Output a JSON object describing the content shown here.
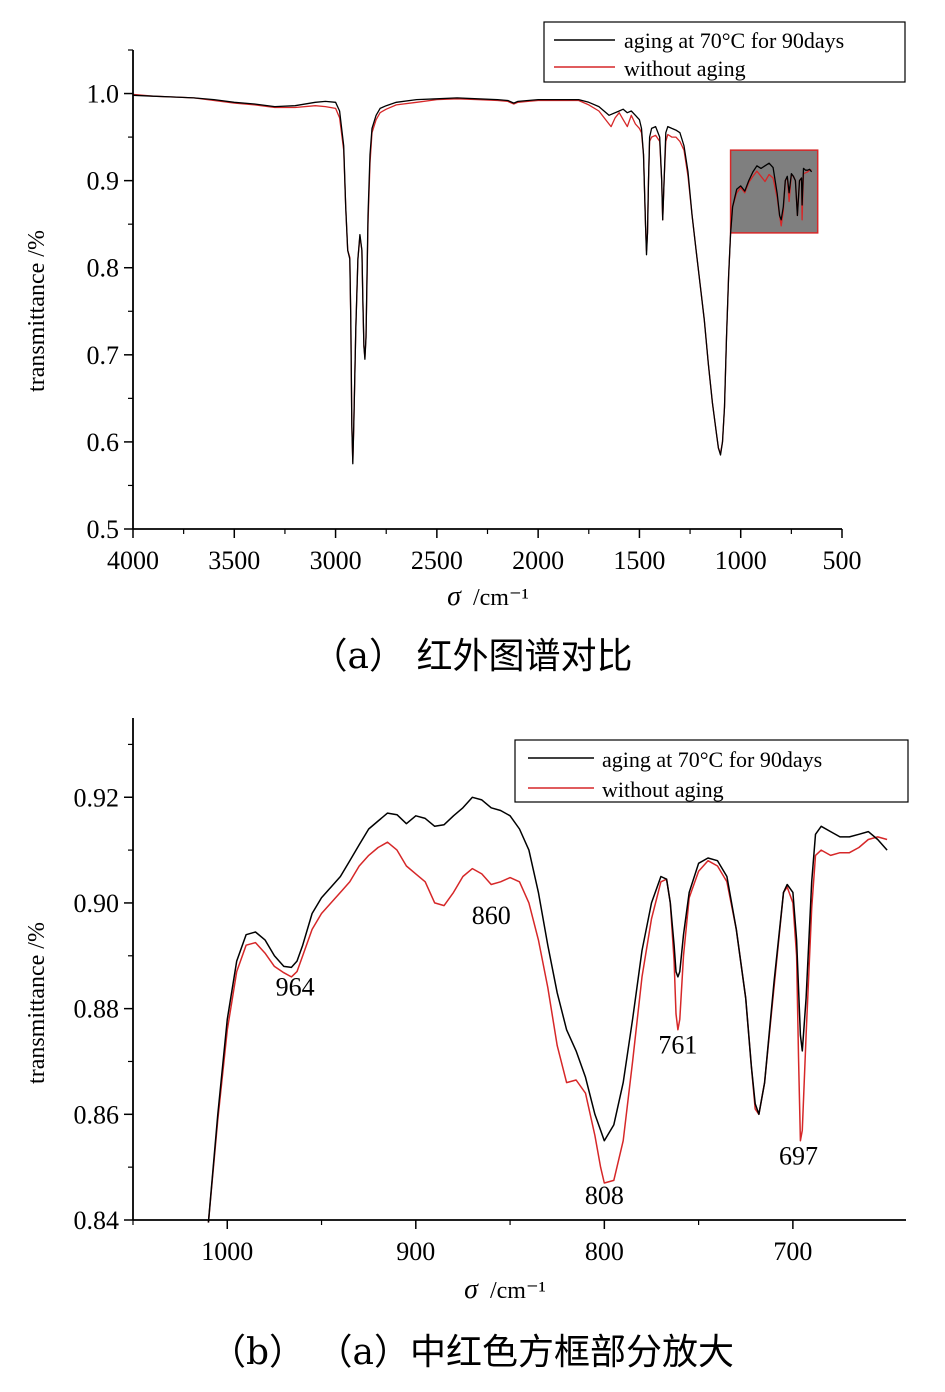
{
  "chart_data": [
    {
      "type": "line",
      "caption": "（a） 红外图谱对比",
      "xlabel_symbol": "σ",
      "xlabel_unit": "/cm⁻¹",
      "ylabel": "transmittance /%",
      "xlim": [
        4000,
        500
      ],
      "ylim": [
        0.5,
        1.05
      ],
      "xticks": [
        4000,
        3500,
        3000,
        2500,
        2000,
        1500,
        1000,
        500
      ],
      "yticks": [
        0.5,
        0.6,
        0.7,
        0.8,
        0.9,
        1.0
      ],
      "ytick_labels": [
        "0.5",
        "0.6",
        "0.7",
        "0.8",
        "0.9",
        "1.0"
      ],
      "legend": "top-right",
      "highlight_box": {
        "x": [
          1050,
          620
        ],
        "y": [
          0.84,
          0.935
        ],
        "fill": "#7f7f7f",
        "stroke": "#d62728"
      },
      "series": [
        {
          "name": "aging at 70°C for 90days",
          "color": "#000000",
          "x": [
            4000,
            3900,
            3800,
            3700,
            3600,
            3500,
            3400,
            3300,
            3200,
            3100,
            3050,
            3000,
            2980,
            2960,
            2950,
            2940,
            2930,
            2925,
            2920,
            2915,
            2910,
            2900,
            2890,
            2880,
            2870,
            2865,
            2860,
            2855,
            2850,
            2840,
            2830,
            2820,
            2800,
            2780,
            2750,
            2700,
            2600,
            2500,
            2400,
            2300,
            2200,
            2150,
            2120,
            2100,
            2050,
            2000,
            1900,
            1800,
            1750,
            1700,
            1650,
            1600,
            1580,
            1560,
            1540,
            1520,
            1500,
            1490,
            1480,
            1470,
            1465,
            1460,
            1455,
            1450,
            1440,
            1420,
            1400,
            1390,
            1385,
            1378,
            1370,
            1360,
            1340,
            1320,
            1300,
            1280,
            1260,
            1240,
            1220,
            1200,
            1180,
            1160,
            1140,
            1120,
            1110,
            1100,
            1090,
            1080,
            1070,
            1060,
            1050,
            1040,
            1020,
            1000,
            980,
            960,
            940,
            920,
            900,
            880,
            860,
            840,
            820,
            808,
            800,
            790,
            780,
            770,
            761,
            750,
            740,
            730,
            720,
            710,
            700,
            697,
            690,
            680,
            670,
            660,
            650
          ],
          "y": [
            0.998,
            0.997,
            0.996,
            0.995,
            0.993,
            0.99,
            0.988,
            0.985,
            0.986,
            0.99,
            0.991,
            0.99,
            0.98,
            0.94,
            0.87,
            0.82,
            0.81,
            0.74,
            0.62,
            0.575,
            0.62,
            0.73,
            0.81,
            0.838,
            0.82,
            0.76,
            0.71,
            0.695,
            0.72,
            0.86,
            0.93,
            0.96,
            0.975,
            0.983,
            0.986,
            0.99,
            0.993,
            0.994,
            0.995,
            0.994,
            0.993,
            0.992,
            0.989,
            0.991,
            0.992,
            0.993,
            0.993,
            0.993,
            0.99,
            0.985,
            0.975,
            0.98,
            0.982,
            0.978,
            0.98,
            0.975,
            0.97,
            0.96,
            0.93,
            0.85,
            0.815,
            0.84,
            0.9,
            0.95,
            0.96,
            0.962,
            0.95,
            0.9,
            0.855,
            0.9,
            0.955,
            0.962,
            0.96,
            0.958,
            0.955,
            0.94,
            0.91,
            0.86,
            0.82,
            0.78,
            0.74,
            0.69,
            0.645,
            0.61,
            0.593,
            0.585,
            0.6,
            0.64,
            0.72,
            0.79,
            0.84,
            0.87,
            0.89,
            0.894,
            0.888,
            0.9,
            0.91,
            0.917,
            0.914,
            0.917,
            0.92,
            0.915,
            0.885,
            0.86,
            0.855,
            0.87,
            0.9,
            0.905,
            0.886,
            0.908,
            0.905,
            0.9,
            0.86,
            0.9,
            0.903,
            0.872,
            0.914,
            0.912,
            0.912,
            0.913,
            0.91
          ]
        },
        {
          "name": "without aging",
          "color": "#d62728",
          "x": [
            4000,
            3900,
            3800,
            3700,
            3600,
            3500,
            3400,
            3300,
            3200,
            3100,
            3050,
            3000,
            2980,
            2960,
            2950,
            2940,
            2930,
            2925,
            2920,
            2915,
            2910,
            2900,
            2890,
            2880,
            2870,
            2865,
            2860,
            2855,
            2850,
            2840,
            2830,
            2820,
            2800,
            2780,
            2750,
            2700,
            2600,
            2500,
            2400,
            2300,
            2200,
            2150,
            2120,
            2100,
            2050,
            2000,
            1900,
            1800,
            1750,
            1700,
            1650,
            1640,
            1620,
            1600,
            1580,
            1560,
            1540,
            1520,
            1500,
            1490,
            1480,
            1470,
            1465,
            1460,
            1455,
            1450,
            1440,
            1420,
            1400,
            1390,
            1385,
            1378,
            1370,
            1360,
            1340,
            1320,
            1300,
            1280,
            1260,
            1240,
            1220,
            1200,
            1180,
            1160,
            1140,
            1120,
            1110,
            1100,
            1090,
            1080,
            1070,
            1060,
            1050,
            1040,
            1020,
            1000,
            980,
            960,
            940,
            920,
            900,
            880,
            860,
            840,
            820,
            808,
            800,
            790,
            780,
            770,
            761,
            750,
            740,
            730,
            720,
            710,
            700,
            697,
            690,
            680,
            670,
            660,
            650
          ],
          "y": [
            0.999,
            0.997,
            0.996,
            0.995,
            0.992,
            0.989,
            0.987,
            0.984,
            0.984,
            0.986,
            0.985,
            0.983,
            0.972,
            0.935,
            0.87,
            0.82,
            0.812,
            0.74,
            0.62,
            0.577,
            0.62,
            0.73,
            0.81,
            0.836,
            0.82,
            0.76,
            0.71,
            0.697,
            0.72,
            0.85,
            0.92,
            0.955,
            0.97,
            0.978,
            0.982,
            0.987,
            0.99,
            0.993,
            0.994,
            0.993,
            0.992,
            0.991,
            0.988,
            0.99,
            0.991,
            0.992,
            0.992,
            0.992,
            0.987,
            0.98,
            0.965,
            0.962,
            0.972,
            0.978,
            0.97,
            0.962,
            0.975,
            0.965,
            0.96,
            0.955,
            0.93,
            0.85,
            0.82,
            0.84,
            0.9,
            0.945,
            0.95,
            0.952,
            0.945,
            0.9,
            0.855,
            0.9,
            0.945,
            0.953,
            0.95,
            0.95,
            0.945,
            0.935,
            0.905,
            0.86,
            0.82,
            0.78,
            0.74,
            0.69,
            0.645,
            0.61,
            0.593,
            0.587,
            0.6,
            0.64,
            0.72,
            0.79,
            0.84,
            0.87,
            0.886,
            0.892,
            0.886,
            0.898,
            0.905,
            0.911,
            0.905,
            0.899,
            0.907,
            0.903,
            0.88,
            0.86,
            0.848,
            0.865,
            0.9,
            0.904,
            0.876,
            0.907,
            0.905,
            0.9,
            0.86,
            0.9,
            0.903,
            0.855,
            0.908,
            0.909,
            0.91,
            0.912,
            0.912
          ]
        }
      ]
    },
    {
      "type": "line",
      "caption": "（b） （a）中红色方框部分放大",
      "xlabel_symbol": "σ",
      "xlabel_unit": "/cm⁻¹",
      "ylabel": "transmittance /%",
      "xlim": [
        1050,
        640
      ],
      "ylim": [
        0.84,
        0.935
      ],
      "xticks": [
        1000,
        900,
        800,
        700
      ],
      "yticks": [
        0.84,
        0.86,
        0.88,
        0.9,
        0.92
      ],
      "ytick_labels": [
        "0.84",
        "0.86",
        "0.88",
        "0.90",
        "0.92"
      ],
      "legend": "top-right",
      "annotations": [
        {
          "text": "964",
          "x": 964,
          "y": 0.8825
        },
        {
          "text": "860",
          "x": 860,
          "y": 0.896
        },
        {
          "text": "808",
          "x": 800,
          "y": 0.843
        },
        {
          "text": "761",
          "x": 761,
          "y": 0.8715
        },
        {
          "text": "697",
          "x": 697,
          "y": 0.8505
        }
      ],
      "series": [
        {
          "name": "aging at 70°C for 90days",
          "color": "#000000",
          "x": [
            1010,
            1005,
            1000,
            995,
            990,
            985,
            980,
            975,
            970,
            966,
            963,
            960,
            955,
            950,
            945,
            940,
            935,
            930,
            925,
            920,
            915,
            910,
            905,
            900,
            895,
            890,
            885,
            880,
            875,
            870,
            865,
            860,
            855,
            850,
            845,
            840,
            835,
            830,
            825,
            820,
            815,
            810,
            805,
            802,
            800,
            795,
            790,
            785,
            780,
            775,
            770,
            767,
            765,
            763,
            762,
            761,
            760,
            758,
            755,
            750,
            745,
            740,
            735,
            730,
            725,
            722,
            720,
            718,
            715,
            710,
            705,
            703,
            700,
            698,
            697,
            696,
            695,
            693,
            690,
            688,
            685,
            680,
            675,
            670,
            665,
            660,
            655,
            650
          ],
          "y": [
            0.8395,
            0.86,
            0.878,
            0.889,
            0.894,
            0.8945,
            0.893,
            0.89,
            0.888,
            0.8878,
            0.889,
            0.892,
            0.898,
            0.901,
            0.903,
            0.905,
            0.908,
            0.911,
            0.914,
            0.9155,
            0.917,
            0.9167,
            0.915,
            0.9165,
            0.916,
            0.9145,
            0.9148,
            0.9165,
            0.918,
            0.92,
            0.9195,
            0.918,
            0.9175,
            0.9165,
            0.914,
            0.91,
            0.902,
            0.892,
            0.883,
            0.876,
            0.872,
            0.867,
            0.86,
            0.857,
            0.855,
            0.858,
            0.866,
            0.878,
            0.891,
            0.9,
            0.905,
            0.9045,
            0.9,
            0.892,
            0.887,
            0.886,
            0.887,
            0.894,
            0.902,
            0.9075,
            0.9085,
            0.908,
            0.905,
            0.895,
            0.882,
            0.869,
            0.862,
            0.86,
            0.866,
            0.885,
            0.902,
            0.9035,
            0.902,
            0.893,
            0.884,
            0.875,
            0.872,
            0.882,
            0.904,
            0.913,
            0.9145,
            0.9135,
            0.9125,
            0.9125,
            0.913,
            0.9135,
            0.912,
            0.91
          ]
        },
        {
          "name": "without aging",
          "color": "#d62728",
          "x": [
            1010,
            1005,
            1000,
            995,
            990,
            985,
            980,
            975,
            970,
            966,
            963,
            960,
            955,
            950,
            945,
            940,
            935,
            930,
            925,
            920,
            915,
            910,
            905,
            900,
            895,
            890,
            885,
            880,
            875,
            870,
            865,
            860,
            855,
            850,
            845,
            840,
            835,
            830,
            825,
            820,
            815,
            810,
            805,
            802,
            800,
            795,
            790,
            785,
            780,
            775,
            770,
            767,
            765,
            763,
            762,
            761,
            760,
            758,
            755,
            750,
            745,
            740,
            735,
            730,
            725,
            722,
            720,
            718,
            715,
            710,
            705,
            703,
            700,
            698,
            697,
            696,
            695,
            693,
            690,
            688,
            685,
            680,
            675,
            670,
            665,
            660,
            655,
            650
          ],
          "y": [
            0.8395,
            0.859,
            0.876,
            0.887,
            0.892,
            0.8925,
            0.8905,
            0.888,
            0.8868,
            0.886,
            0.887,
            0.89,
            0.895,
            0.898,
            0.9,
            0.902,
            0.904,
            0.907,
            0.909,
            0.9105,
            0.9115,
            0.91,
            0.907,
            0.9055,
            0.904,
            0.9,
            0.8995,
            0.902,
            0.905,
            0.9065,
            0.9055,
            0.9035,
            0.904,
            0.9048,
            0.904,
            0.9,
            0.893,
            0.884,
            0.873,
            0.866,
            0.8665,
            0.864,
            0.856,
            0.85,
            0.847,
            0.8475,
            0.855,
            0.87,
            0.886,
            0.897,
            0.904,
            0.9045,
            0.9,
            0.889,
            0.879,
            0.876,
            0.878,
            0.89,
            0.901,
            0.906,
            0.908,
            0.907,
            0.904,
            0.895,
            0.882,
            0.869,
            0.861,
            0.86,
            0.866,
            0.884,
            0.902,
            0.903,
            0.9,
            0.89,
            0.871,
            0.855,
            0.857,
            0.875,
            0.899,
            0.909,
            0.91,
            0.909,
            0.9095,
            0.9095,
            0.9105,
            0.912,
            0.9125,
            0.912
          ]
        }
      ]
    }
  ]
}
